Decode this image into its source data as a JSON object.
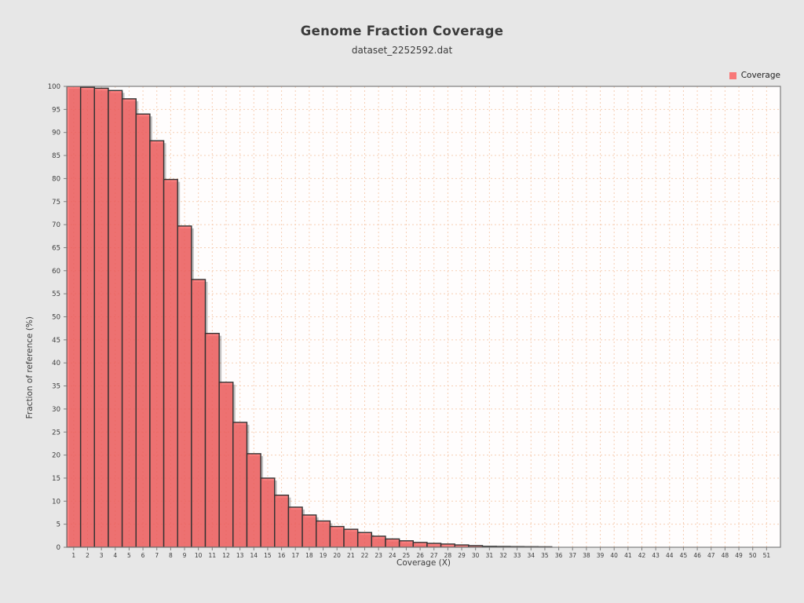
{
  "page": {
    "background": "#e7e7e7"
  },
  "header": {
    "title": "Genome Fraction Coverage",
    "subtitle": "dataset_2252592.dat"
  },
  "legend": {
    "label": "Coverage",
    "swatch_color": "#f87878",
    "position": "top-right"
  },
  "style": {
    "figure_bg": "#e7e7e7",
    "plot_bg": "#fffdfd",
    "grid_color": "#f0a878",
    "bar_fill": "#f85b5b",
    "bar_stroke": "#333333",
    "frame_color": "#7d7d7d",
    "tick_text_color": "#3d3d3d",
    "shadow_color": "rgba(40,40,40,0.28)"
  },
  "chart_data": {
    "type": "bar",
    "title": "Genome Fraction Coverage",
    "subtitle": "dataset_2252592.dat",
    "xlabel": "Coverage (X)",
    "ylabel": "Fraction of reference (%)",
    "xlim": [
      0.5,
      52
    ],
    "ylim": [
      0,
      100
    ],
    "grid": "dashed",
    "legend_position": "top-right",
    "x_ticks": [
      1,
      2,
      3,
      4,
      5,
      6,
      7,
      8,
      9,
      10,
      11,
      12,
      13,
      14,
      15,
      16,
      17,
      18,
      19,
      20,
      21,
      22,
      23,
      24,
      25,
      26,
      27,
      28,
      29,
      30,
      31,
      32,
      33,
      34,
      35,
      36,
      37,
      38,
      39,
      40,
      41,
      42,
      43,
      44,
      45,
      46,
      47,
      48,
      49,
      50,
      51
    ],
    "y_ticks": [
      0,
      5,
      10,
      15,
      20,
      25,
      30,
      35,
      40,
      45,
      50,
      55,
      60,
      65,
      70,
      75,
      80,
      85,
      90,
      95,
      100
    ],
    "series": [
      {
        "name": "Coverage",
        "color": "#f85b5b",
        "x": [
          1,
          2,
          3,
          4,
          5,
          6,
          7,
          8,
          9,
          10,
          11,
          12,
          13,
          14,
          15,
          16,
          17,
          18,
          19,
          20,
          21,
          22,
          23,
          24,
          25,
          26,
          27,
          28,
          29,
          30,
          31,
          32,
          33,
          34,
          35
        ],
        "values": [
          100.0,
          99.8,
          99.6,
          99.1,
          97.3,
          94.0,
          88.2,
          79.8,
          69.7,
          58.1,
          46.4,
          35.8,
          27.1,
          20.3,
          15.0,
          11.3,
          8.7,
          7.0,
          5.7,
          4.5,
          3.9,
          3.2,
          2.4,
          1.8,
          1.4,
          1.05,
          0.85,
          0.7,
          0.5,
          0.35,
          0.2,
          0.17,
          0.14,
          0.12,
          0.1
        ]
      }
    ]
  }
}
